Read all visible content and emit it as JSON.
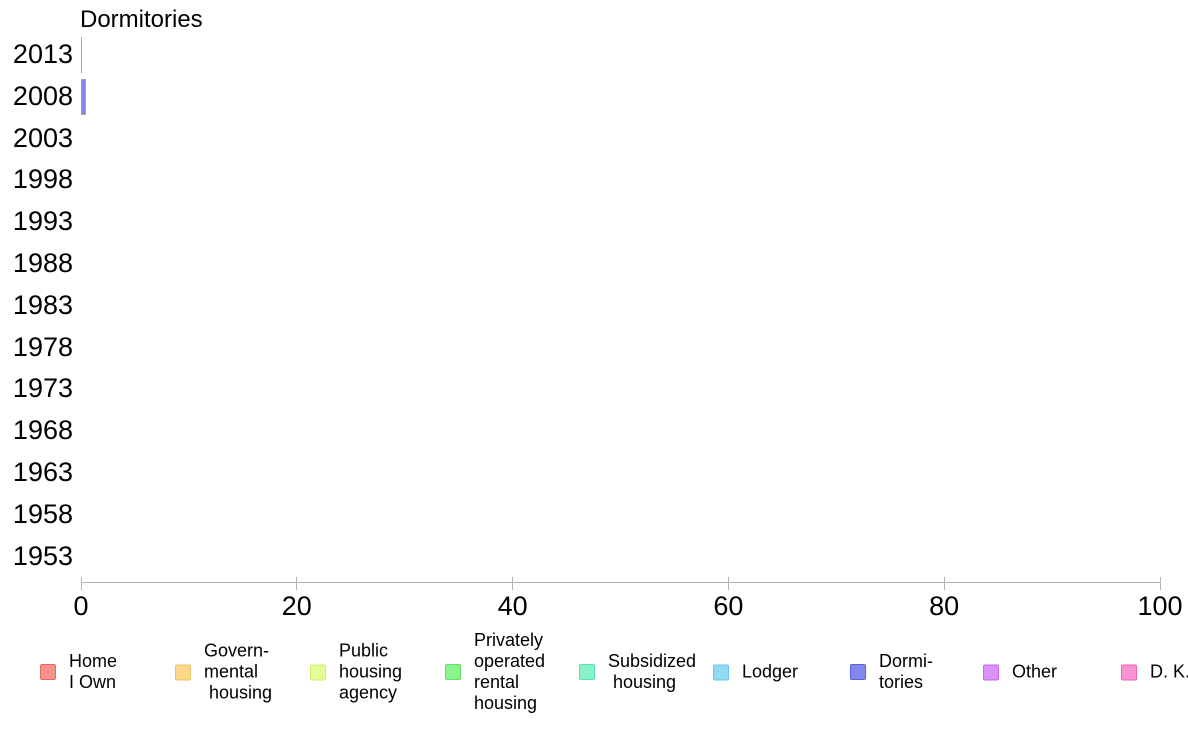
{
  "chart_data": {
    "type": "bar",
    "orientation": "horizontal",
    "title": "Dormitories",
    "series_name": "Dormitories",
    "categories": [
      "2013",
      "2008",
      "2003",
      "1998",
      "1993",
      "1988",
      "1983",
      "1978",
      "1973",
      "1968",
      "1963",
      "1958",
      "1953"
    ],
    "values": [
      0.1,
      0.5,
      0,
      0,
      0,
      0,
      0,
      0,
      0,
      0,
      0,
      0,
      0
    ],
    "xlim": [
      0,
      100
    ],
    "x_ticks": [
      0,
      20,
      40,
      60,
      80,
      100
    ],
    "x_tick_labels": [
      "0",
      "20",
      "40",
      "60",
      "80",
      "100"
    ],
    "grid": false,
    "legend_position": "bottom",
    "bar_color": "#8184ea",
    "bar_outline_color": "#a5a5a5",
    "axis_line_color": "#b5b5b5"
  },
  "legend": {
    "items": [
      {
        "name": "home-i-own",
        "label": "Home\nI Own",
        "fill": "#f5928c",
        "border": "#ea6a63"
      },
      {
        "name": "governmental",
        "label": "Govern-\nmental\n housing",
        "fill": "#fbd98b",
        "border": "#efc163"
      },
      {
        "name": "public-housing",
        "label": "Public\nhousing\nagency",
        "fill": "#e6fc96",
        "border": "#cfef68"
      },
      {
        "name": "private-rental",
        "label": "Privately\noperated\nrental\nhousing",
        "fill": "#8bf28d",
        "border": "#5ce55f"
      },
      {
        "name": "subsidized",
        "label": "Subsidized\n housing",
        "fill": "#89f2cb",
        "border": "#5be5ad"
      },
      {
        "name": "lodger",
        "label": "Lodger",
        "fill": "#92d9f4",
        "border": "#63c6ee"
      },
      {
        "name": "dormitories",
        "label": "Dormi-\ntories",
        "fill": "#8486ec",
        "border": "#5d60e1"
      },
      {
        "name": "other",
        "label": "Other",
        "fill": "#db92f4",
        "border": "#c763ee"
      },
      {
        "name": "dk",
        "label": "D. K.",
        "fill": "#fa92d3",
        "border": "#f262b4"
      }
    ]
  }
}
